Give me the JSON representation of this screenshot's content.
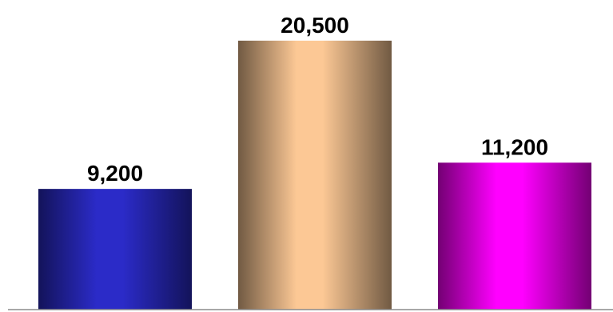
{
  "chart_data": {
    "type": "bar",
    "values": [
      9200,
      20500,
      11200
    ],
    "labels": [
      "9,200",
      "20,500",
      "11,200"
    ],
    "colors": [
      "#2b2bc8",
      "#fcc895",
      "#ff00ff"
    ],
    "ylim": [
      0,
      23600
    ],
    "grid": false,
    "legend": "none"
  }
}
